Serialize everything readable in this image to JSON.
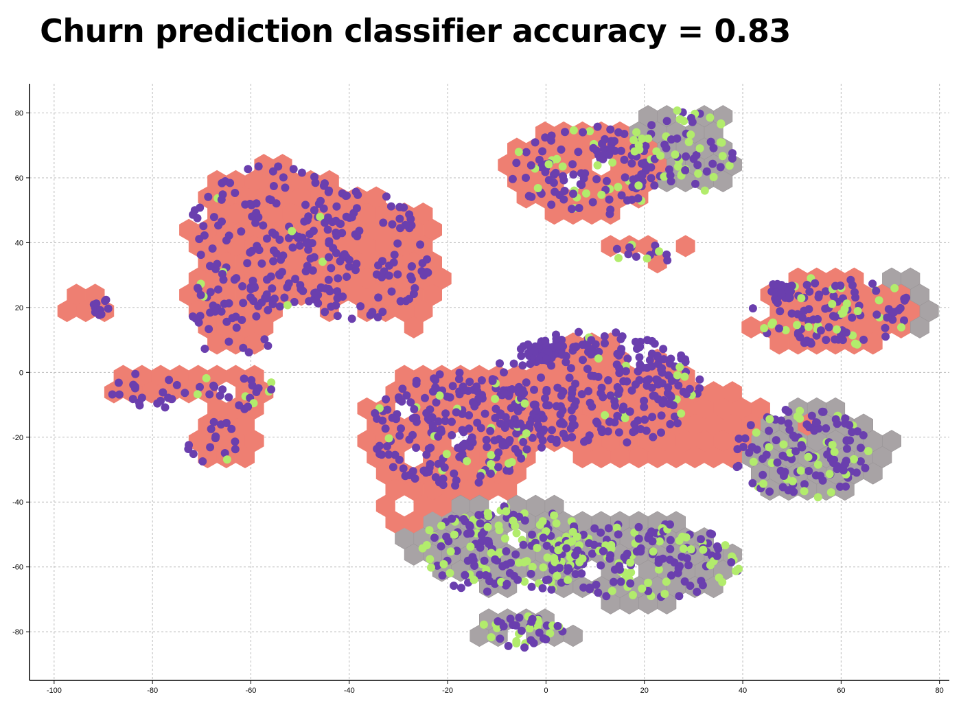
{
  "chart_data": {
    "type": "scatter",
    "title": "Churn prediction classifier accuracy = 0.83",
    "xlabel": "",
    "ylabel": "",
    "xlim": [
      -105,
      82
    ],
    "ylim": [
      -95,
      89
    ],
    "xticks": [
      -100,
      -80,
      -60,
      -40,
      -20,
      0,
      20,
      40,
      60,
      80
    ],
    "yticks": [
      80,
      60,
      40,
      20,
      0,
      -20,
      -40,
      -60,
      -80
    ],
    "grid": true,
    "legend": "none",
    "colors": {
      "hex_red": "#ee7f72",
      "hex_gray": "#a8a3a5",
      "point_purple": "#6a3fae",
      "point_green": "#b2ec6c"
    },
    "hex_regions": [
      {
        "cx": -56,
        "cy": 42,
        "rx": 17,
        "ry": 22,
        "color": "hex_red"
      },
      {
        "cx": -40,
        "cy": 36,
        "rx": 14,
        "ry": 20,
        "color": "hex_red"
      },
      {
        "cx": -28,
        "cy": 32,
        "rx": 7,
        "ry": 18,
        "color": "hex_red"
      },
      {
        "cx": -63,
        "cy": 20,
        "rx": 10,
        "ry": 14,
        "color": "hex_red"
      },
      {
        "cx": -93,
        "cy": 21,
        "rx": 5,
        "ry": 5,
        "color": "hex_red"
      },
      {
        "cx": -78,
        "cy": -5,
        "rx": 12,
        "ry": 6,
        "color": "hex_red"
      },
      {
        "cx": -62,
        "cy": -7,
        "rx": 7,
        "ry": 9,
        "color": "hex_red"
      },
      {
        "cx": -66,
        "cy": -22,
        "rx": 7,
        "ry": 8,
        "color": "hex_red"
      },
      {
        "cx": 8,
        "cy": 62,
        "rx": 16,
        "ry": 15,
        "color": "hex_red"
      },
      {
        "cx": 28,
        "cy": 69,
        "rx": 12,
        "ry": 14,
        "color": "hex_gray"
      },
      {
        "cx": 20,
        "cy": 38,
        "rx": 10,
        "ry": 4,
        "color": "hex_red"
      },
      {
        "cx": 58,
        "cy": 19,
        "rx": 17,
        "ry": 12,
        "color": "hex_red"
      },
      {
        "cx": 72,
        "cy": 20,
        "rx": 7,
        "ry": 10,
        "color": "hex_gray"
      },
      {
        "cx": -20,
        "cy": -20,
        "rx": 18,
        "ry": 20,
        "color": "hex_red"
      },
      {
        "cx": 8,
        "cy": -8,
        "rx": 22,
        "ry": 18,
        "color": "hex_red"
      },
      {
        "cx": 25,
        "cy": -15,
        "rx": 15,
        "ry": 15,
        "color": "hex_red"
      },
      {
        "cx": 55,
        "cy": -25,
        "rx": 15,
        "ry": 14,
        "color": "hex_gray"
      },
      {
        "cx": 45,
        "cy": -20,
        "rx": 10,
        "ry": 12,
        "color": "hex_red"
      },
      {
        "cx": -10,
        "cy": -52,
        "rx": 18,
        "ry": 14,
        "color": "hex_gray"
      },
      {
        "cx": 18,
        "cy": -58,
        "rx": 20,
        "ry": 14,
        "color": "hex_gray"
      },
      {
        "cx": -25,
        "cy": -40,
        "rx": 10,
        "ry": 10,
        "color": "hex_red"
      },
      {
        "cx": -5,
        "cy": -80,
        "rx": 10,
        "ry": 6,
        "color": "hex_gray"
      }
    ],
    "point_regions": [
      {
        "cx": -56,
        "cy": 42,
        "rx": 17,
        "ry": 22,
        "count": 130,
        "green_share": 0.01
      },
      {
        "cx": -38,
        "cy": 36,
        "rx": 15,
        "ry": 20,
        "count": 110,
        "green_share": 0.02
      },
      {
        "cx": -63,
        "cy": 18,
        "rx": 10,
        "ry": 14,
        "count": 40,
        "green_share": 0.02
      },
      {
        "cx": -91,
        "cy": 20,
        "rx": 3,
        "ry": 3,
        "count": 12,
        "green_share": 0.0
      },
      {
        "cx": -78,
        "cy": -5,
        "rx": 11,
        "ry": 6,
        "count": 25,
        "green_share": 0.08
      },
      {
        "cx": -62,
        "cy": -6,
        "rx": 7,
        "ry": 8,
        "count": 18,
        "green_share": 0.15
      },
      {
        "cx": -66,
        "cy": -22,
        "rx": 7,
        "ry": 7,
        "count": 16,
        "green_share": 0.1
      },
      {
        "cx": 8,
        "cy": 62,
        "rx": 15,
        "ry": 14,
        "count": 120,
        "green_share": 0.2
      },
      {
        "cx": 28,
        "cy": 68,
        "rx": 11,
        "ry": 13,
        "count": 70,
        "green_share": 0.55
      },
      {
        "cx": 20,
        "cy": 37,
        "rx": 9,
        "ry": 3,
        "count": 14,
        "green_share": 0.35
      },
      {
        "cx": 58,
        "cy": 19,
        "rx": 17,
        "ry": 11,
        "count": 110,
        "green_share": 0.2
      },
      {
        "cx": 48,
        "cy": 25,
        "rx": 3,
        "ry": 3,
        "count": 25,
        "green_share": 0.0
      },
      {
        "cx": -18,
        "cy": -18,
        "rx": 18,
        "ry": 18,
        "count": 220,
        "green_share": 0.1
      },
      {
        "cx": 10,
        "cy": -5,
        "rx": 22,
        "ry": 18,
        "count": 260,
        "green_share": 0.05
      },
      {
        "cx": 0,
        "cy": 7,
        "rx": 4,
        "ry": 4,
        "count": 40,
        "green_share": 0.0
      },
      {
        "cx": 52,
        "cy": -25,
        "rx": 14,
        "ry": 14,
        "count": 130,
        "green_share": 0.22
      },
      {
        "cx": -8,
        "cy": -55,
        "rx": 18,
        "ry": 14,
        "count": 180,
        "green_share": 0.35
      },
      {
        "cx": 20,
        "cy": -58,
        "rx": 20,
        "ry": 12,
        "count": 160,
        "green_share": 0.4
      },
      {
        "cx": -5,
        "cy": -80,
        "rx": 9,
        "ry": 5,
        "count": 40,
        "green_share": 0.35
      }
    ]
  }
}
